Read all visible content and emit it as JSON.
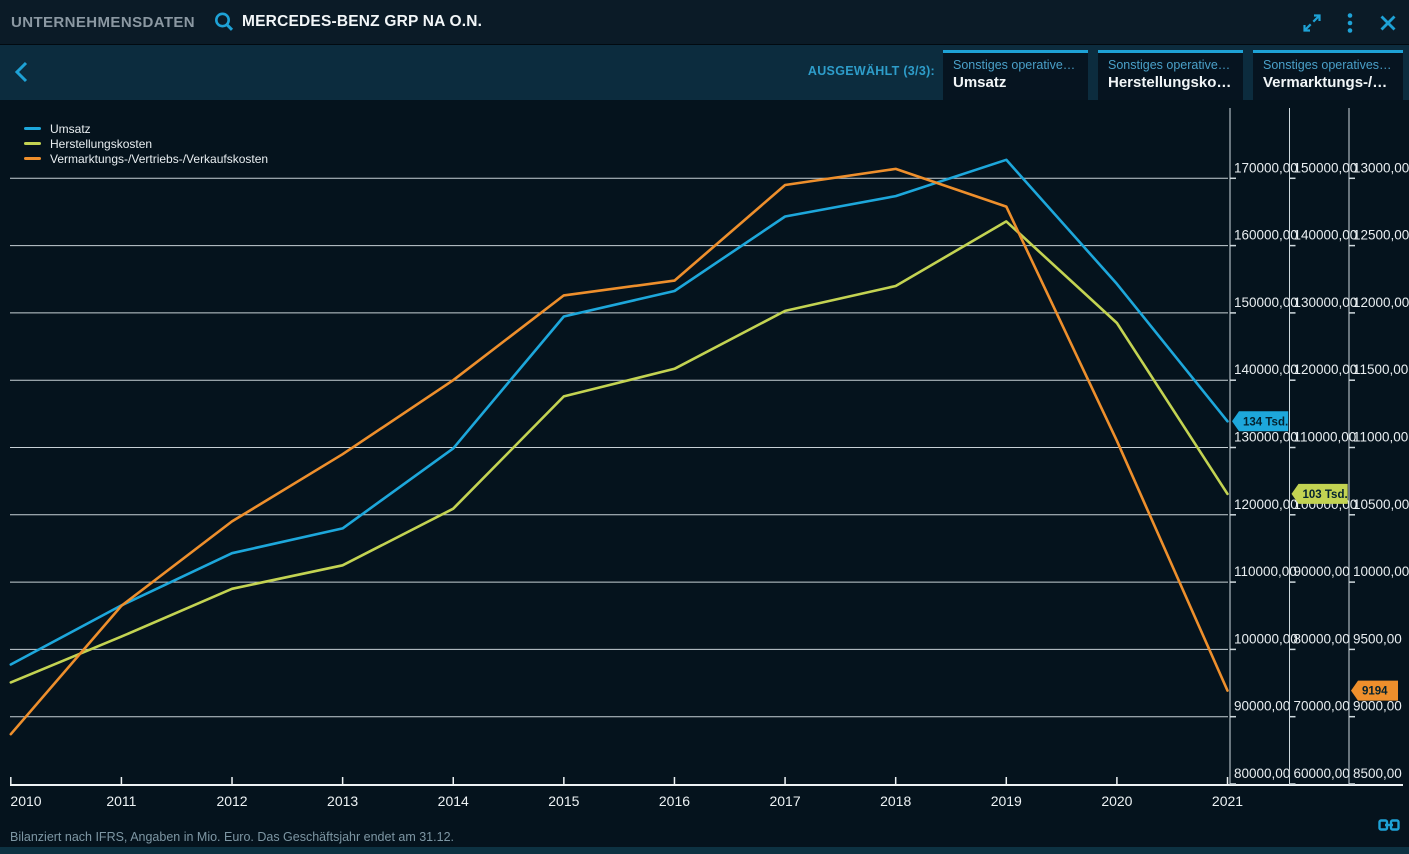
{
  "top_bar": {
    "app_title": "UNTERNEHMENSDATEN",
    "instrument_name": "MERCEDES-BENZ GRP NA O.N.",
    "icons": [
      "search-icon",
      "expand-icon",
      "kebab-menu-icon",
      "close-icon"
    ]
  },
  "toolbar": {
    "back_icon": "chevron-left-icon",
    "selected_label": "AUSGEWÄHLT (3/3):",
    "tabs": [
      {
        "subtitle": "Sonstiges operatives …",
        "title": "Umsatz"
      },
      {
        "subtitle": "Sonstiges operatives …",
        "title": "Herstellungskosten"
      },
      {
        "subtitle": "Sonstiges operatives …",
        "title": "Vermarktungs-/V…"
      }
    ]
  },
  "footer": {
    "note": "Bilanziert nach IFRS, Angaben in Mio. Euro. Das Geschäftsjahr endet am 31.12.",
    "link_icon": "link-icon"
  },
  "colors": {
    "accent": "#1ea2d6",
    "background": "#05131d",
    "topbar_bg": "#0b1b27",
    "subheader_bg": "#0c2c3e",
    "tab_bg": "#061420",
    "grid": "#dde5ea",
    "axis_text": "#e9eef1",
    "muted_text": "#7d96a3",
    "badge_text": "#04222f"
  },
  "chart_data": {
    "type": "line",
    "unit": "Mio. Euro",
    "grid": true,
    "legend_position": "top-left",
    "x": [
      "2010",
      "2011",
      "2012",
      "2013",
      "2014",
      "2015",
      "2016",
      "2017",
      "2018",
      "2019",
      "2020",
      "2021"
    ],
    "series": [
      {
        "name": "Umsatz",
        "color": "#1da7db",
        "axis": 1,
        "values": [
          97761,
          106540,
          114297,
          117982,
          129872,
          149467,
          153261,
          164330,
          167362,
          172745,
          154309,
          133893
        ],
        "end_label": "134 Tsd."
      },
      {
        "name": "Herstellungskosten",
        "color": "#c3d352",
        "axis": 2,
        "values": [
          75100,
          81900,
          89000,
          92500,
          100900,
          117600,
          121700,
          130300,
          134000,
          143600,
          128500,
          103100
        ],
        "end_label": "103 Tsd."
      },
      {
        "name": "Vermarktungs-/Vertriebs-/Verkaufskosten",
        "color": "#ee8f2c",
        "axis": 3,
        "values": [
          8870,
          9824,
          10451,
          10950,
          11500,
          12130,
          12240,
          12950,
          13070,
          12790,
          11050,
          9194
        ],
        "end_label": "9194"
      }
    ],
    "axes": [
      {
        "id": 1,
        "top": 170000,
        "bottom": 80000,
        "step": 10000,
        "tick_labels": [
          "170000,00",
          "160000,00",
          "150000,00",
          "140000,00",
          "130000,00",
          "120000,00",
          "110000,00",
          "100000,00",
          "90000,00",
          "80000,00"
        ]
      },
      {
        "id": 2,
        "top": 150000,
        "bottom": 60000,
        "step": 10000,
        "tick_labels": [
          "150000,00",
          "140000,00",
          "130000,00",
          "120000,00",
          "110000,00",
          "100000,00",
          "90000,00",
          "80000,00",
          "70000,00",
          "60000,00"
        ]
      },
      {
        "id": 3,
        "top": 13000,
        "bottom": 8500,
        "step": 500,
        "tick_labels": [
          "13000,00",
          "12500,00",
          "12000,00",
          "11500,00",
          "11000,00",
          "10500,00",
          "10000,00",
          "9500,00",
          "9000,00",
          "8500,00"
        ]
      }
    ]
  }
}
